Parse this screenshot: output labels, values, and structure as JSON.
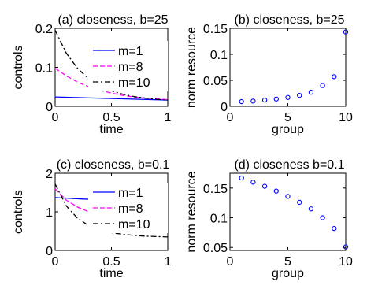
{
  "chart_data": [
    {
      "type": "line",
      "title": "(a) closeness, b=25",
      "xlabel": "time",
      "ylabel": "controls",
      "xlim": [
        0,
        1
      ],
      "ylim": [
        0,
        0.2
      ],
      "xticks": [
        "0",
        "0.5",
        "1"
      ],
      "yticks": [
        "0",
        "0.1",
        "0.2"
      ],
      "legend": "top-right",
      "series": [
        {
          "name": "m=1",
          "style": "solid",
          "color": "#0000ff",
          "x": [
            0,
            0.25,
            0.5,
            0.75,
            1
          ],
          "y": [
            0.024,
            0.022,
            0.02,
            0.018,
            0.016
          ]
        },
        {
          "name": "m=8",
          "style": "dashed",
          "color": "#ff00ff",
          "x": [
            0,
            0.1,
            0.2,
            0.3,
            0.4,
            0.5,
            0.6,
            0.7,
            0.8,
            0.9,
            1
          ],
          "y": [
            0.098,
            0.078,
            0.062,
            0.05,
            0.041,
            0.034,
            0.028,
            0.024,
            0.021,
            0.019,
            0.017
          ]
        },
        {
          "name": "m=10",
          "style": "dash-dot",
          "color": "#000000",
          "x": [
            0,
            0.1,
            0.2,
            0.3,
            0.4,
            0.5,
            0.6,
            0.7,
            0.8,
            0.9,
            1
          ],
          "y": [
            0.195,
            0.136,
            0.097,
            0.07,
            0.052,
            0.04,
            0.031,
            0.025,
            0.021,
            0.018,
            0.016
          ]
        }
      ]
    },
    {
      "type": "scatter",
      "title": "(b) closeness, b=25",
      "xlabel": "group",
      "ylabel": "norm resource",
      "xlim": [
        0,
        10
      ],
      "ylim": [
        0,
        0.15
      ],
      "xticks": [
        "0",
        "5",
        "10"
      ],
      "yticks": [
        "0",
        "0.05",
        "0.1",
        "0.15"
      ],
      "series": [
        {
          "color": "#0000ff",
          "marker": "circle",
          "x": [
            1,
            2,
            3,
            4,
            5,
            6,
            7,
            8,
            9,
            10
          ],
          "y": [
            0.009,
            0.01,
            0.012,
            0.014,
            0.017,
            0.021,
            0.027,
            0.04,
            0.057,
            0.143
          ]
        }
      ]
    },
    {
      "type": "line",
      "title": "(c) closeness, b=0.1",
      "xlabel": "time",
      "ylabel": "controls",
      "xlim": [
        0,
        1
      ],
      "ylim": [
        0,
        2
      ],
      "xticks": [
        "0",
        "0.5",
        "1"
      ],
      "yticks": [
        "0",
        "1",
        "2"
      ],
      "legend": "top-right",
      "series": [
        {
          "name": "m=1",
          "style": "solid",
          "color": "#0000ff",
          "x": [
            0,
            0.25,
            0.5,
            0.75,
            1
          ],
          "y": [
            1.37,
            1.33,
            1.31,
            1.3,
            1.3
          ]
        },
        {
          "name": "m=8",
          "style": "dashed",
          "color": "#ff00ff",
          "x": [
            0,
            0.1,
            0.2,
            0.3,
            0.4,
            0.5,
            0.6,
            0.7,
            0.8,
            0.9,
            1
          ],
          "y": [
            1.6,
            1.3,
            1.12,
            1.0,
            0.93,
            0.88,
            0.85,
            0.83,
            0.82,
            0.81,
            0.8
          ]
        },
        {
          "name": "m=10",
          "style": "dash-dot",
          "color": "#000000",
          "x": [
            0,
            0.1,
            0.2,
            0.3,
            0.4,
            0.5,
            0.6,
            0.7,
            0.8,
            0.9,
            1
          ],
          "y": [
            1.72,
            1.15,
            0.83,
            0.64,
            0.53,
            0.46,
            0.42,
            0.39,
            0.37,
            0.36,
            0.35
          ]
        }
      ]
    },
    {
      "type": "scatter",
      "title": "(d) closeness b=0.1",
      "xlabel": "group",
      "ylabel": "norm resource",
      "xlim": [
        0,
        10
      ],
      "ylim": [
        0.045,
        0.175
      ],
      "xticks": [
        "0",
        "5",
        "10"
      ],
      "yticks": [
        "0.05",
        "0.1",
        "0.15"
      ],
      "series": [
        {
          "color": "#0000ff",
          "marker": "circle",
          "x": [
            1,
            2,
            3,
            4,
            5,
            6,
            7,
            8,
            9,
            10
          ],
          "y": [
            0.167,
            0.16,
            0.153,
            0.145,
            0.136,
            0.126,
            0.115,
            0.1,
            0.082,
            0.051
          ]
        }
      ]
    }
  ]
}
